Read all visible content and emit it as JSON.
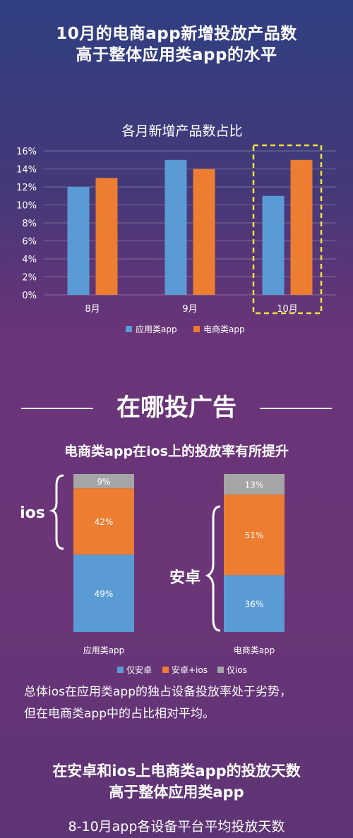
{
  "header": {
    "line1": "10月的电商app新增投放产品数",
    "line2": "高于整体应用类app的水平"
  },
  "section": {
    "title": "在哪投广告"
  },
  "ios_section": {
    "subtitle": "电商类app在ios上的投放率有所提升"
  },
  "brackets": {
    "ios": "ios",
    "android": "安卓"
  },
  "description": {
    "line1": "总体ios在应用类app的独占设备投放率处于劣势，",
    "line2": "但在电商类app中的占比相对平均。"
  },
  "bottom": {
    "line1": "在安卓和ios上电商类app的投放天数",
    "line2": "高于整体应用类app",
    "subtitle": "8-10月app各设备平台平均投放天数"
  },
  "chart_data": [
    {
      "type": "bar",
      "title": "各月新增产品数占比",
      "categories": [
        "8月",
        "9月",
        "10月"
      ],
      "series": [
        {
          "name": "应用类app",
          "values": [
            12,
            15,
            11
          ],
          "color": "#5b9bd5"
        },
        {
          "name": "电商类app",
          "values": [
            13,
            14,
            15
          ],
          "color": "#ed7d31"
        }
      ],
      "ylim": [
        0,
        16
      ],
      "yticks": [
        "0%",
        "2%",
        "4%",
        "6%",
        "8%",
        "10%",
        "12%",
        "14%",
        "16%"
      ],
      "unit": "%",
      "highlight_category": "10月",
      "highlight_color": "#f0e33a",
      "grid": true,
      "legend": "bottom"
    },
    {
      "type": "bar",
      "stacked": true,
      "categories": [
        "应用类app",
        "电商类app"
      ],
      "series": [
        {
          "name": "仅安卓",
          "values": [
            49,
            36
          ],
          "labels": [
            "49%",
            "36%"
          ],
          "color": "#5b9bd5"
        },
        {
          "name": "安卓+ios",
          "values": [
            42,
            51
          ],
          "labels": [
            "42%",
            "51%"
          ],
          "color": "#ed7d31"
        },
        {
          "name": "仅ios",
          "values": [
            9,
            13
          ],
          "labels": [
            "9%",
            "13%"
          ],
          "color": "#a5a5a5"
        }
      ],
      "ylim": [
        0,
        100
      ],
      "legend": "bottom"
    }
  ]
}
